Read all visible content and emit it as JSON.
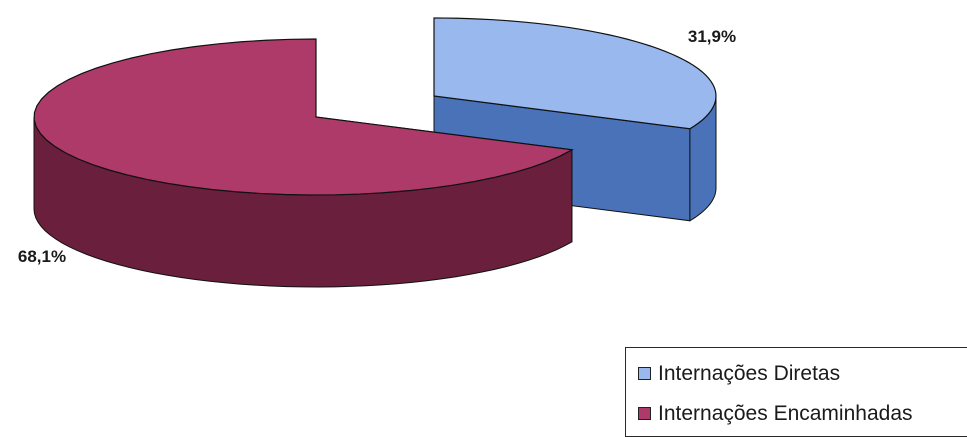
{
  "chart_data": {
    "type": "pie",
    "style": "3d-exploded",
    "title": "",
    "slices": [
      {
        "label": "Internações Diretas",
        "value": 31.9,
        "value_label": "31,9%",
        "color": "#99b8ee",
        "side_color": "#4a72b8"
      },
      {
        "label": "Internações Encaminhadas",
        "value": 68.1,
        "value_label": "68,1%",
        "color": "#ae3a6a",
        "side_color": "#6a1f3c"
      }
    ],
    "legend_position": "bottom-right"
  }
}
